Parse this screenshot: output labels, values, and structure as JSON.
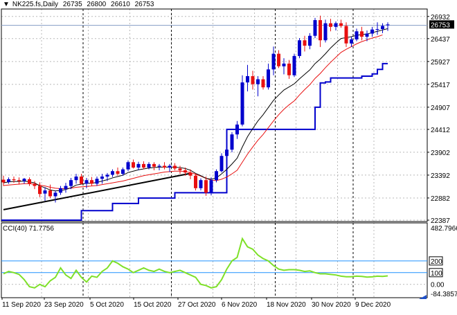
{
  "chart_data": [
    {
      "type": "candlestick",
      "symbol": "NK225.fs",
      "timeframe": "Daily",
      "header": {
        "symbol_tf": "NK225.fs,Daily",
        "open": "26735",
        "high": "26800",
        "low": "26610",
        "close": "26753"
      },
      "price_axis_ticks": [
        "26932",
        "26753",
        "26437",
        "25927",
        "25417",
        "24907",
        "24412",
        "23902",
        "23392",
        "22882",
        "22387"
      ],
      "current_price_label": "26753",
      "ylim": [
        22387,
        26990
      ],
      "x_tick_labels": [
        "11 Sep 2020",
        "23 Sep 2020",
        "5 Oct 2020",
        "15 Oct 2020",
        "27 Oct 2020",
        "6 Nov 2020",
        "18 Nov 2020",
        "30 Nov 2020",
        "9 Dec 2020"
      ],
      "ohlc": [
        [
          23290,
          23380,
          23150,
          23230
        ],
        [
          23240,
          23340,
          23200,
          23300
        ],
        [
          23300,
          23360,
          23220,
          23280
        ],
        [
          23280,
          23340,
          23180,
          23260
        ],
        [
          23260,
          23330,
          23200,
          23310
        ],
        [
          23300,
          23340,
          23150,
          23200
        ],
        [
          23200,
          23260,
          23080,
          23150
        ],
        [
          23150,
          23230,
          22900,
          22970
        ],
        [
          22980,
          23120,
          22820,
          23050
        ],
        [
          23050,
          23180,
          22880,
          22920
        ],
        [
          22920,
          23050,
          22780,
          23000
        ],
        [
          23000,
          23150,
          22950,
          23100
        ],
        [
          23080,
          23220,
          23000,
          23150
        ],
        [
          23150,
          23330,
          23080,
          23280
        ],
        [
          23280,
          23420,
          23200,
          23360
        ],
        [
          23360,
          23420,
          23180,
          23200
        ],
        [
          23200,
          23330,
          23100,
          23280
        ],
        [
          23280,
          23350,
          23150,
          23200
        ],
        [
          23200,
          23360,
          23150,
          23310
        ],
        [
          23310,
          23420,
          23200,
          23360
        ],
        [
          23360,
          23440,
          23260,
          23400
        ],
        [
          23400,
          23520,
          23350,
          23480
        ],
        [
          23480,
          23560,
          23380,
          23420
        ],
        [
          23420,
          23560,
          23380,
          23520
        ],
        [
          23520,
          23720,
          23480,
          23680
        ],
        [
          23680,
          23740,
          23540,
          23560
        ],
        [
          23560,
          23690,
          23500,
          23640
        ],
        [
          23640,
          23700,
          23520,
          23560
        ],
        [
          23560,
          23680,
          23520,
          23640
        ],
        [
          23640,
          23680,
          23500,
          23580
        ],
        [
          23580,
          23640,
          23500,
          23600
        ],
        [
          23600,
          23680,
          23520,
          23560
        ],
        [
          23560,
          23640,
          23460,
          23600
        ],
        [
          23600,
          23660,
          23500,
          23540
        ],
        [
          23540,
          23600,
          23420,
          23500
        ],
        [
          23500,
          23560,
          23380,
          23450
        ],
        [
          23450,
          23520,
          23300,
          23380
        ],
        [
          23380,
          23430,
          23050,
          23100
        ],
        [
          23100,
          23320,
          23050,
          23280
        ],
        [
          23280,
          23360,
          22930,
          23000
        ],
        [
          23000,
          23340,
          22940,
          23280
        ],
        [
          23280,
          23520,
          23230,
          23480
        ],
        [
          23480,
          23880,
          23450,
          23820
        ],
        [
          23820,
          24060,
          23700,
          23960
        ],
        [
          23960,
          24350,
          23900,
          24300
        ],
        [
          24300,
          24600,
          24200,
          24520
        ],
        [
          24520,
          25620,
          24480,
          25460
        ],
        [
          25460,
          25850,
          25260,
          25600
        ],
        [
          25600,
          25720,
          25300,
          25420
        ],
        [
          25420,
          25600,
          25150,
          25530
        ],
        [
          25530,
          25600,
          25300,
          25350
        ],
        [
          25350,
          25880,
          25300,
          25750
        ],
        [
          25750,
          26260,
          25620,
          26100
        ],
        [
          26100,
          26180,
          25780,
          25820
        ],
        [
          25820,
          26000,
          25640,
          25880
        ],
        [
          25880,
          25960,
          25540,
          25620
        ],
        [
          25620,
          26100,
          25580,
          26050
        ],
        [
          26050,
          26450,
          26000,
          26400
        ],
        [
          26400,
          26500,
          26150,
          26280
        ],
        [
          26280,
          26560,
          26200,
          26500
        ],
        [
          26500,
          26900,
          26450,
          26850
        ],
        [
          26850,
          26950,
          26250,
          26400
        ],
        [
          26400,
          26860,
          26350,
          26780
        ],
        [
          26780,
          26880,
          26600,
          26700
        ],
        [
          26700,
          26820,
          26620,
          26780
        ],
        [
          26780,
          26860,
          26680,
          26720
        ],
        [
          26720,
          26800,
          26250,
          26330
        ],
        [
          26330,
          26480,
          26250,
          26420
        ],
        [
          26420,
          26660,
          26380,
          26600
        ],
        [
          26600,
          26700,
          26400,
          26480
        ],
        [
          26480,
          26620,
          26380,
          26550
        ],
        [
          26550,
          26700,
          26480,
          26640
        ],
        [
          26640,
          26800,
          26520,
          26650
        ],
        [
          26650,
          26780,
          26560,
          26720
        ],
        [
          26735,
          26800,
          26610,
          26753
        ]
      ],
      "ma_fast": [
        23220,
        23240,
        23250,
        23250,
        23260,
        23240,
        23220,
        23150,
        23110,
        23060,
        23040,
        23050,
        23070,
        23110,
        23170,
        23190,
        23210,
        23210,
        23230,
        23260,
        23290,
        23330,
        23360,
        23390,
        23450,
        23480,
        23510,
        23530,
        23550,
        23560,
        23570,
        23570,
        23570,
        23570,
        23560,
        23540,
        23500,
        23430,
        23380,
        23320,
        23300,
        23330,
        23420,
        23520,
        23640,
        23770,
        24020,
        24250,
        24430,
        24600,
        24740,
        24900,
        25060,
        25180,
        25290,
        25360,
        25430,
        25540,
        25640,
        25740,
        25880,
        25980,
        26100,
        26230,
        26340,
        26440,
        26460,
        26480,
        26510,
        26530,
        26540,
        26570,
        26600,
        26630,
        26660
      ],
      "ma_slow": [
        23160,
        23170,
        23180,
        23190,
        23200,
        23200,
        23190,
        23170,
        23150,
        23120,
        23100,
        23090,
        23090,
        23100,
        23120,
        23130,
        23140,
        23150,
        23160,
        23180,
        23200,
        23220,
        23240,
        23260,
        23290,
        23320,
        23350,
        23380,
        23400,
        23420,
        23440,
        23460,
        23470,
        23480,
        23480,
        23470,
        23450,
        23410,
        23370,
        23320,
        23280,
        23270,
        23300,
        23350,
        23420,
        23500,
        23680,
        23860,
        24020,
        24170,
        24300,
        24450,
        24600,
        24740,
        24860,
        24960,
        25050,
        25180,
        25300,
        25410,
        25550,
        25660,
        25790,
        25910,
        26020,
        26130,
        26200,
        26260,
        26320,
        26370,
        26410,
        26450,
        26480,
        26520,
        26550
      ],
      "ma_slow_last_index": 73,
      "donchian": [
        22387,
        22387,
        22387,
        22387,
        22387,
        22387,
        22387,
        22387,
        22387,
        22387,
        22387,
        22387,
        22387,
        22387,
        22387,
        22600,
        22600,
        22600,
        22600,
        22600,
        22600,
        22760,
        22760,
        22760,
        22760,
        22760,
        22880,
        22880,
        22880,
        22880,
        22880,
        22880,
        22880,
        23000,
        23000,
        23000,
        23000,
        23000,
        23000,
        23000,
        23000,
        23000,
        23000,
        24412,
        24412,
        24412,
        24412,
        24412,
        24412,
        24412,
        24412,
        24412,
        24412,
        24412,
        24412,
        24412,
        24412,
        24412,
        24412,
        24412,
        24907,
        25450,
        25470,
        25560,
        25560,
        25560,
        25560,
        25560,
        25560,
        25600,
        25600,
        25650,
        25750,
        25880,
        25880
      ],
      "donchian_first_index": 11,
      "trendline": {
        "start": [
          0,
          22620
        ],
        "end": [
          36,
          23430
        ]
      },
      "vlines_index": [
        10,
        27,
        47,
        62
      ],
      "hline_price": 26735,
      "colors": {
        "bull": "#0000cd",
        "bear": "#e81010",
        "ma_fast": "#000000",
        "ma_slow": "#e81010",
        "donchian": "#0000cd",
        "trendline": "#000000",
        "grid": "#b8b8b8",
        "indicator": "#7ee028",
        "level_line": "#1e90ff"
      },
      "grid": true
    },
    {
      "type": "line",
      "indicator": "CCI(40)",
      "label": "CCI(40) 71.7756",
      "axis_labels": [
        "482.7966",
        "200",
        "100",
        "0.00",
        "-84.3857"
      ],
      "ylim": [
        -84.3857,
        482.7966
      ],
      "levels": [
        200,
        100
      ],
      "level_labels": [
        "200",
        "100"
      ],
      "values": [
        90,
        110,
        100,
        85,
        40,
        -20,
        -30,
        0,
        -20,
        30,
        60,
        140,
        80,
        50,
        120,
        60,
        20,
        70,
        60,
        110,
        140,
        200,
        180,
        150,
        130,
        100,
        120,
        140,
        120,
        110,
        130,
        110,
        100,
        110,
        120,
        100,
        80,
        60,
        0,
        -10,
        -30,
        -20,
        40,
        130,
        200,
        230,
        390,
        320,
        300,
        250,
        220,
        200,
        160,
        130,
        120,
        125,
        125,
        120,
        110,
        115,
        100,
        90,
        90,
        85,
        80,
        70,
        65,
        65,
        70,
        68,
        62,
        64,
        70,
        68,
        72
      ]
    }
  ]
}
